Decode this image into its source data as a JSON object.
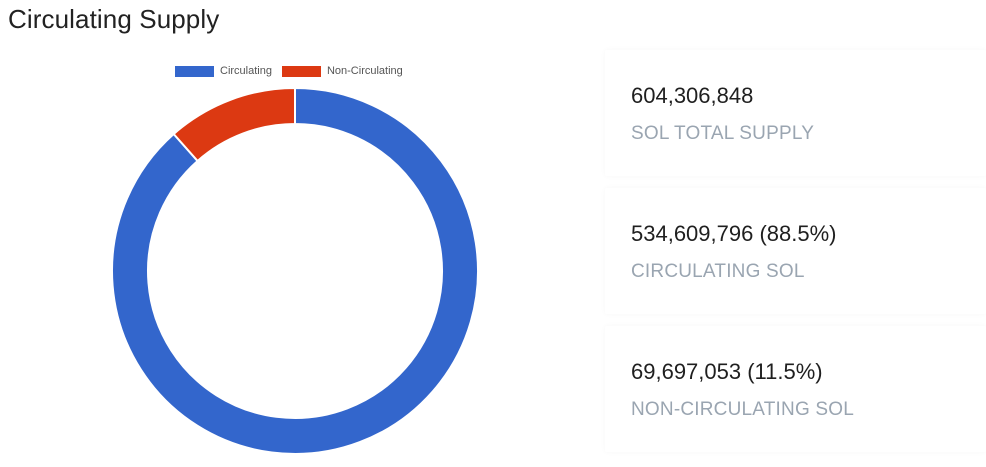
{
  "page": {
    "title": "Circulating Supply"
  },
  "chart_data": {
    "type": "pie",
    "variant": "doughnut",
    "title": "",
    "legend_position": "top",
    "series": [
      {
        "name": "Circulating",
        "value": 534609796,
        "color": "#3366cc"
      },
      {
        "name": "Non-Circulating",
        "value": 69697053,
        "color": "#dc3912"
      }
    ]
  },
  "stats": [
    {
      "value": "604,306,848",
      "label": "SOL TOTAL SUPPLY"
    },
    {
      "value": "534,609,796 (88.5%)",
      "label": "CIRCULATING SOL"
    },
    {
      "value": "69,697,053 (11.5%)",
      "label": "NON-CIRCULATING SOL"
    }
  ]
}
